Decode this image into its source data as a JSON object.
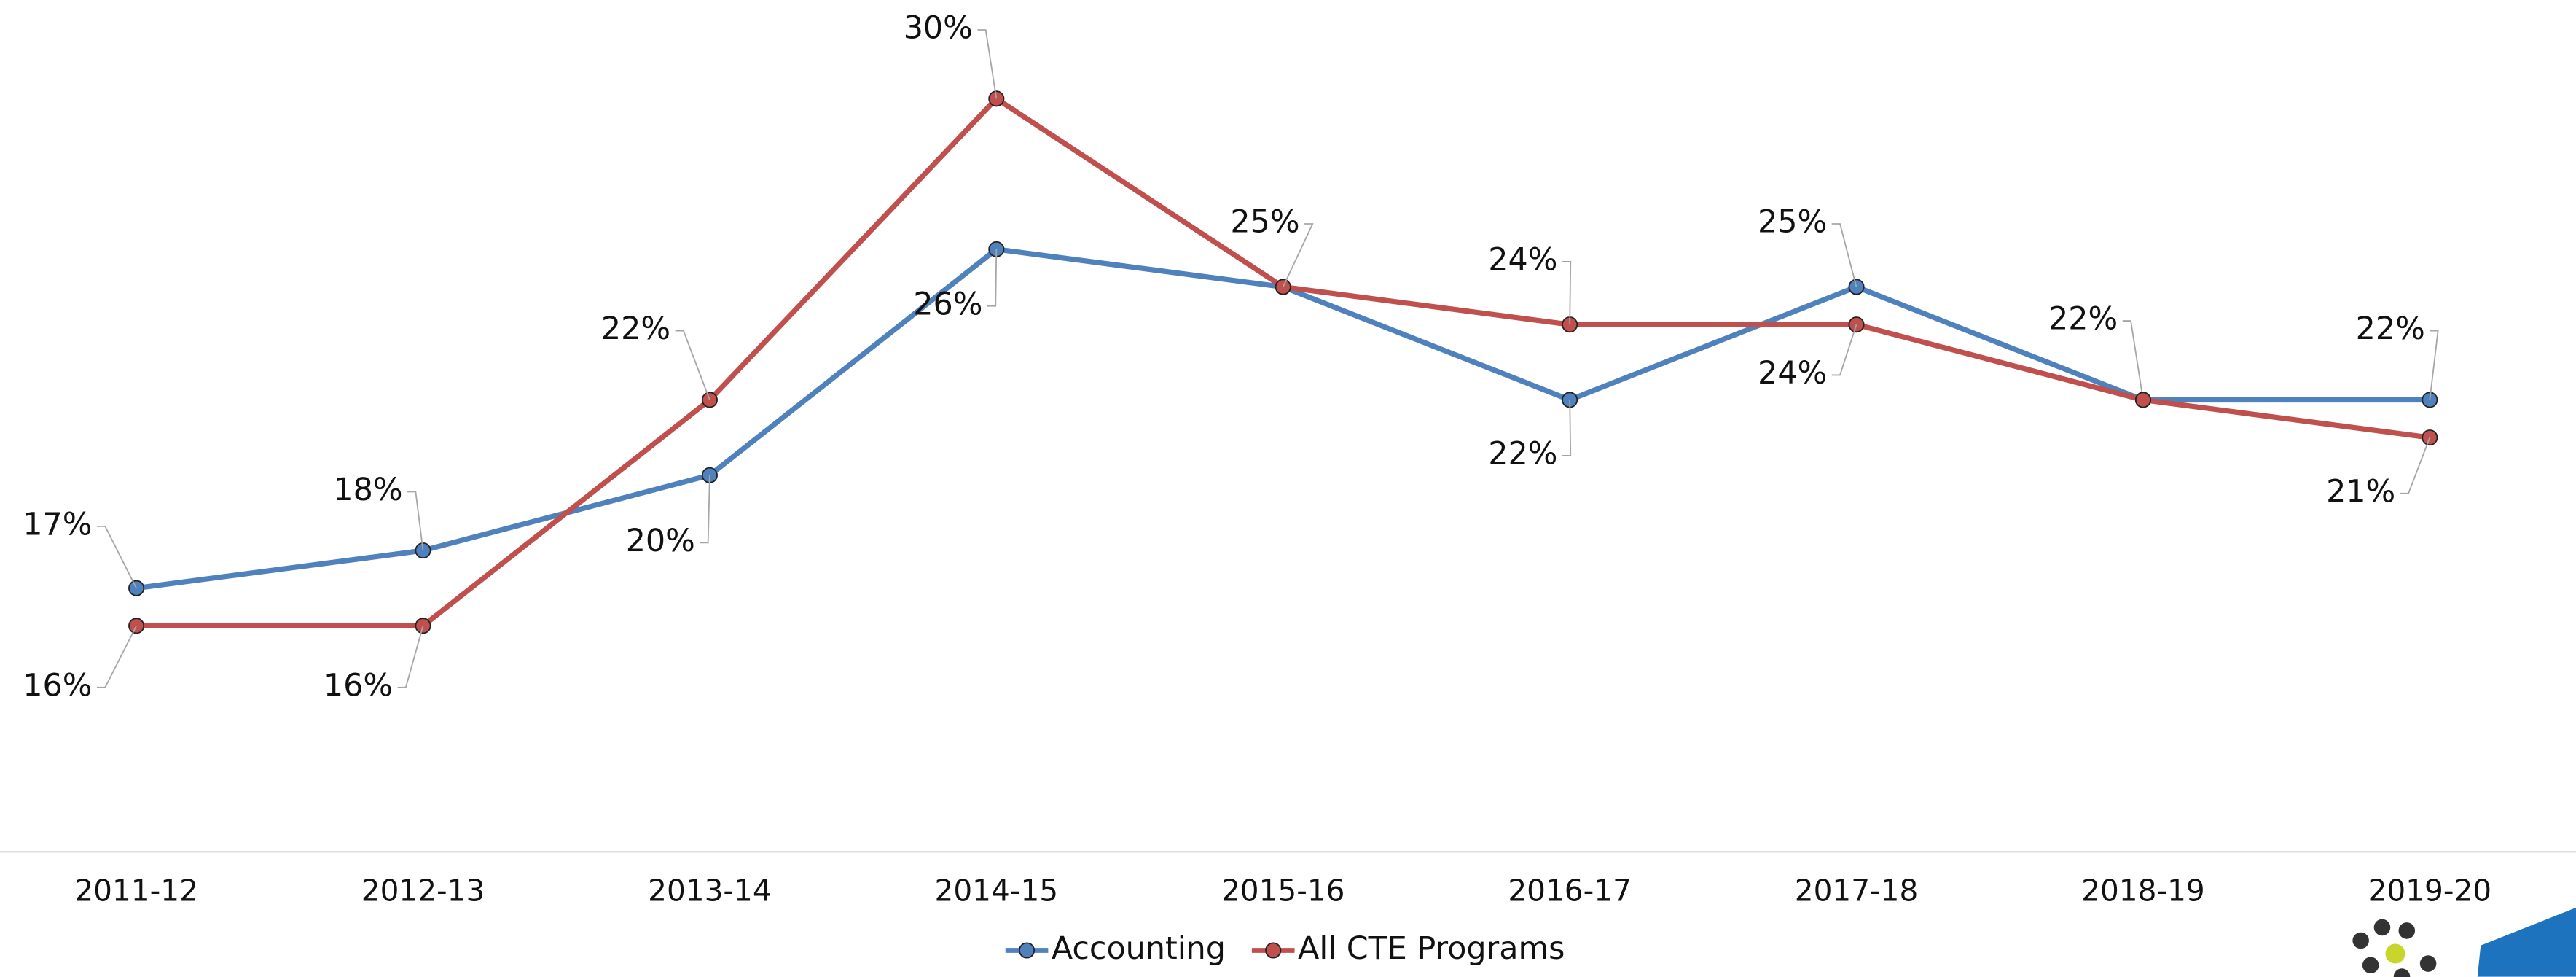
{
  "chart_data": {
    "type": "line",
    "categories": [
      "2011-12",
      "2012-13",
      "2013-14",
      "2014-15",
      "2015-16",
      "2016-17",
      "2017-18",
      "2018-19",
      "2019-20"
    ],
    "series": [
      {
        "name": "Accounting",
        "color": "#4f81bd",
        "values": [
          17,
          18,
          20,
          26,
          25,
          22,
          25,
          22,
          22
        ],
        "value_labels": [
          "17%",
          "18%",
          "20%",
          "26%",
          null,
          "22%",
          "25%",
          "22%",
          "22%"
        ]
      },
      {
        "name": "All CTE Programs",
        "color": "#c0504d",
        "values": [
          16,
          16,
          22,
          30,
          25,
          24,
          24,
          22,
          21
        ],
        "value_labels": [
          "16%",
          "16%",
          "22%",
          "30%",
          "25%",
          "24%",
          "24%",
          null,
          "21%"
        ]
      }
    ],
    "ylim": [
      10,
      32
    ],
    "legend": "bottom"
  }
}
